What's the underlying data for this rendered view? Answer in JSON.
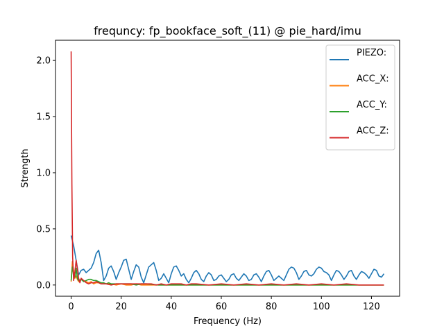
{
  "chart_data": {
    "type": "line",
    "title": "frequncy: fp_bookface_soft_(11) @ pie_hard/imu",
    "xlabel": "Frequency (Hz)",
    "ylabel": "Strength",
    "xlim": [
      -6.25,
      131.25
    ],
    "ylim": [
      -0.1,
      2.18
    ],
    "xticks": [
      0,
      20,
      40,
      60,
      80,
      100,
      120
    ],
    "xtick_labels": [
      "0",
      "20",
      "40",
      "60",
      "80",
      "100",
      "120"
    ],
    "yticks": [
      0.0,
      0.5,
      1.0,
      1.5,
      2.0
    ],
    "ytick_labels": [
      "0.0",
      "0.5",
      "1.0",
      "1.5",
      "2.0"
    ],
    "grid": false,
    "legend_position": "top-right",
    "series": [
      {
        "name": "PIEZO:",
        "color": "#1f77b4",
        "x": [
          0,
          1,
          2,
          3,
          4,
          5,
          6,
          7,
          8,
          9,
          10,
          11,
          12,
          13,
          14,
          15,
          16,
          17,
          18,
          19,
          20,
          21,
          22,
          23,
          24,
          25,
          26,
          27,
          28,
          29,
          30,
          31,
          32,
          33,
          34,
          35,
          36,
          37,
          38,
          39,
          40,
          41,
          42,
          43,
          44,
          45,
          46,
          47,
          48,
          49,
          50,
          51,
          52,
          53,
          54,
          55,
          56,
          57,
          58,
          59,
          60,
          61,
          62,
          63,
          64,
          65,
          66,
          67,
          68,
          69,
          70,
          71,
          72,
          73,
          74,
          75,
          76,
          77,
          78,
          79,
          80,
          81,
          82,
          83,
          84,
          85,
          86,
          87,
          88,
          89,
          90,
          91,
          92,
          93,
          94,
          95,
          96,
          97,
          98,
          99,
          100,
          101,
          102,
          103,
          104,
          105,
          106,
          107,
          108,
          109,
          110,
          111,
          112,
          113,
          114,
          115,
          116,
          117,
          118,
          119,
          120,
          121,
          122,
          123,
          124,
          125
        ],
        "values": [
          0.44,
          0.35,
          0.22,
          0.09,
          0.13,
          0.14,
          0.11,
          0.13,
          0.15,
          0.2,
          0.28,
          0.31,
          0.2,
          0.04,
          0.08,
          0.15,
          0.17,
          0.12,
          0.05,
          0.11,
          0.16,
          0.22,
          0.23,
          0.14,
          0.05,
          0.12,
          0.18,
          0.16,
          0.07,
          0.02,
          0.09,
          0.16,
          0.18,
          0.2,
          0.13,
          0.04,
          0.06,
          0.1,
          0.06,
          0.02,
          0.1,
          0.16,
          0.17,
          0.13,
          0.08,
          0.1,
          0.05,
          0.02,
          0.06,
          0.11,
          0.13,
          0.1,
          0.05,
          0.03,
          0.08,
          0.11,
          0.09,
          0.04,
          0.05,
          0.08,
          0.09,
          0.06,
          0.03,
          0.05,
          0.09,
          0.1,
          0.06,
          0.04,
          0.07,
          0.1,
          0.08,
          0.04,
          0.05,
          0.09,
          0.1,
          0.07,
          0.03,
          0.08,
          0.12,
          0.13,
          0.09,
          0.04,
          0.06,
          0.08,
          0.06,
          0.04,
          0.09,
          0.14,
          0.16,
          0.15,
          0.11,
          0.05,
          0.08,
          0.12,
          0.13,
          0.09,
          0.08,
          0.1,
          0.14,
          0.16,
          0.15,
          0.12,
          0.11,
          0.09,
          0.04,
          0.09,
          0.13,
          0.12,
          0.09,
          0.05,
          0.08,
          0.12,
          0.13,
          0.08,
          0.05,
          0.09,
          0.12,
          0.11,
          0.09,
          0.06,
          0.1,
          0.14,
          0.13,
          0.08,
          0.07,
          0.1
        ]
      },
      {
        "name": "ACC_X:",
        "color": "#ff7f0e",
        "x": [
          0,
          0.5,
          1,
          1.5,
          2,
          2.5,
          3,
          4,
          5,
          6,
          7,
          8,
          9,
          10,
          11,
          12,
          13,
          14,
          15,
          16,
          18,
          20,
          22,
          24,
          26,
          28,
          30,
          35,
          40,
          45,
          50,
          55,
          60,
          65,
          70,
          75,
          80,
          85,
          90,
          95,
          100,
          105,
          110,
          115,
          120,
          125
        ],
        "values": [
          0.03,
          0.21,
          0.12,
          0.06,
          0.08,
          0.05,
          0.03,
          0.05,
          0.04,
          0.03,
          0.02,
          0.03,
          0.01,
          0.02,
          0.02,
          0.01,
          0.01,
          0.01,
          0.01,
          0.01,
          0.0,
          0.01,
          0.0,
          0.0,
          0.01,
          0.0,
          0.0,
          0.0,
          0.0,
          0.0,
          0.0,
          0.0,
          0.0,
          0.0,
          0.0,
          0.0,
          0.0,
          0.0,
          0.0,
          0.0,
          0.0,
          0.0,
          0.0,
          0.0,
          0.0,
          0.0
        ]
      },
      {
        "name": "ACC_Y:",
        "color": "#2ca02c",
        "x": [
          0,
          0.5,
          1,
          1.5,
          2,
          2.5,
          3,
          4,
          5,
          6,
          7,
          8,
          9,
          10,
          11,
          12,
          13,
          14,
          15,
          16,
          18,
          20,
          22,
          24,
          26,
          28,
          30,
          35,
          40,
          45,
          50,
          55,
          60,
          65,
          70,
          75,
          80,
          85,
          90,
          95,
          100,
          105,
          110,
          115,
          120,
          125
        ],
        "values": [
          0.04,
          0.16,
          0.1,
          0.07,
          0.15,
          0.06,
          0.04,
          0.05,
          0.03,
          0.04,
          0.05,
          0.05,
          0.04,
          0.04,
          0.03,
          0.02,
          0.02,
          0.01,
          0.02,
          0.01,
          0.01,
          0.01,
          0.01,
          0.01,
          0.0,
          0.01,
          0.01,
          0.0,
          0.0,
          0.0,
          0.0,
          0.0,
          0.0,
          0.0,
          0.0,
          0.0,
          0.0,
          0.0,
          0.0,
          0.0,
          0.0,
          0.0,
          0.0,
          0.0,
          0.0,
          0.0
        ]
      },
      {
        "name": "ACC_Z:",
        "color": "#d62728",
        "x": [
          0,
          0.3,
          0.6,
          1,
          1.5,
          2,
          2.5,
          3,
          3.5,
          4,
          5,
          6,
          7,
          8,
          9,
          10,
          11,
          12,
          14,
          16,
          18,
          20,
          22,
          24,
          26,
          28,
          30,
          32,
          34,
          36,
          38,
          40,
          42,
          44,
          46,
          48,
          50,
          55,
          60,
          65,
          70,
          75,
          80,
          85,
          90,
          95,
          100,
          105,
          110,
          115,
          120,
          125
        ],
        "values": [
          2.08,
          0.9,
          0.25,
          0.04,
          0.12,
          0.22,
          0.14,
          0.06,
          0.02,
          0.06,
          0.04,
          0.02,
          0.01,
          0.02,
          0.02,
          0.03,
          0.02,
          0.01,
          0.01,
          0.0,
          0.01,
          0.01,
          0.01,
          0.01,
          0.01,
          0.01,
          0.01,
          0.01,
          0.0,
          0.01,
          0.0,
          0.01,
          0.01,
          0.01,
          0.0,
          0.01,
          0.01,
          0.0,
          0.01,
          0.0,
          0.01,
          0.0,
          0.01,
          0.0,
          0.01,
          0.0,
          0.01,
          0.0,
          0.01,
          0.0,
          0.0,
          0.0
        ]
      }
    ]
  }
}
